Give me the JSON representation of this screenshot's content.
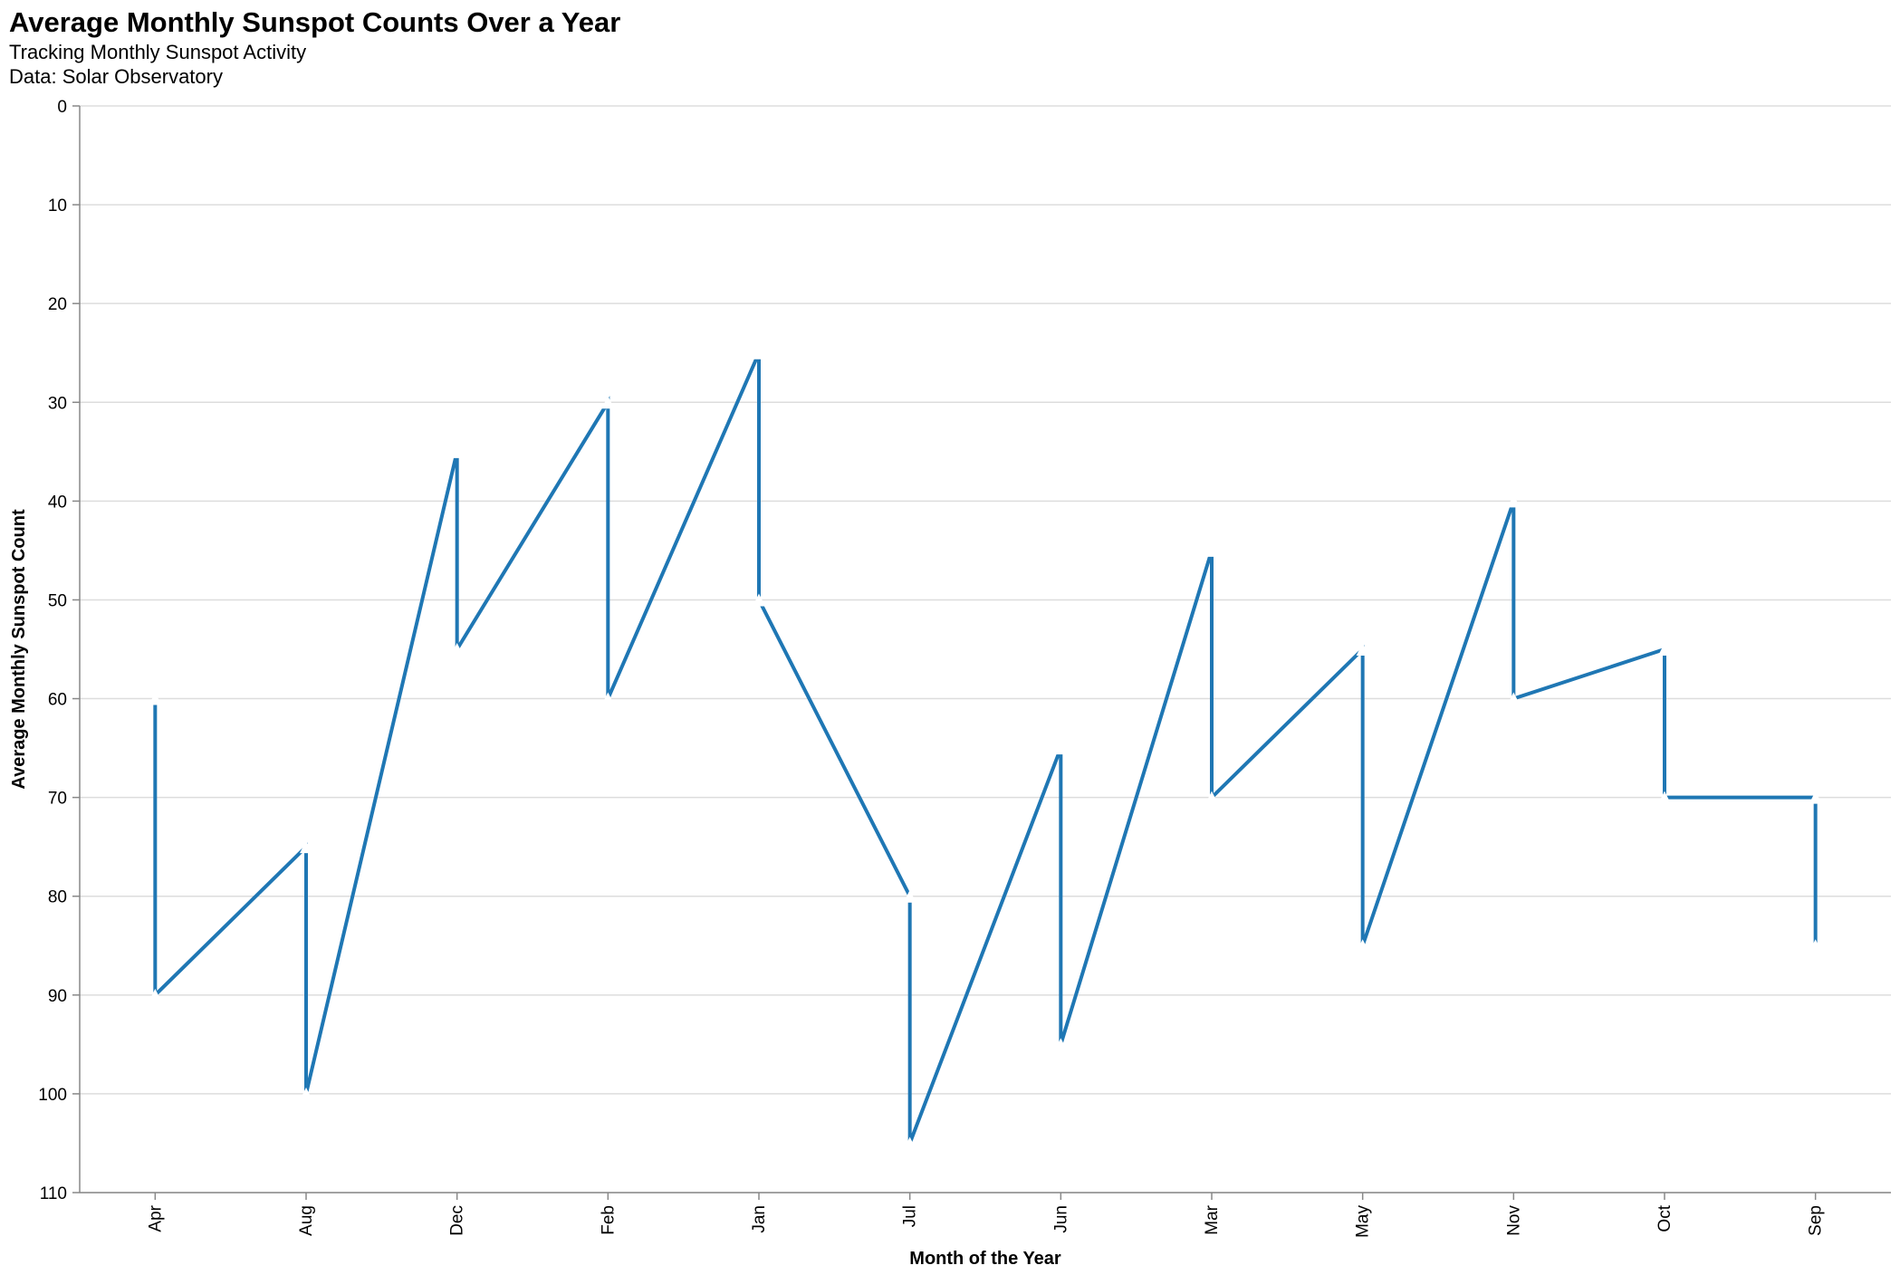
{
  "chart_data": {
    "type": "line",
    "title": "Average Monthly Sunspot Counts Over a Year",
    "subtitle": [
      "Tracking Monthly Sunspot Activity",
      "Data: Solar Observatory"
    ],
    "xlabel": "Month of the Year",
    "ylabel": "Average Monthly Sunspot Count",
    "categories": [
      "Apr",
      "Aug",
      "Dec",
      "Feb",
      "Jan",
      "Jul",
      "Jun",
      "Mar",
      "May",
      "Nov",
      "Oct",
      "Sep"
    ],
    "ylim": [
      0,
      110
    ],
    "y_reversed": true,
    "yticks": [
      0,
      10,
      20,
      30,
      40,
      50,
      60,
      70,
      80,
      90,
      100,
      110
    ],
    "grid": true,
    "series_color": "#1f77b4",
    "points": [
      {
        "month": "Apr",
        "value": 60
      },
      {
        "month": "Apr",
        "value": 90
      },
      {
        "month": "Aug",
        "value": 75
      },
      {
        "month": "Aug",
        "value": 100
      },
      {
        "month": "Dec",
        "value": 35
      },
      {
        "month": "Dec",
        "value": 55
      },
      {
        "month": "Feb",
        "value": 30
      },
      {
        "month": "Feb",
        "value": 60
      },
      {
        "month": "Jan",
        "value": 25
      },
      {
        "month": "Jan",
        "value": 50
      },
      {
        "month": "Jul",
        "value": 80
      },
      {
        "month": "Jul",
        "value": 105
      },
      {
        "month": "Jun",
        "value": 65
      },
      {
        "month": "Jun",
        "value": 95
      },
      {
        "month": "Mar",
        "value": 45
      },
      {
        "month": "Mar",
        "value": 70
      },
      {
        "month": "May",
        "value": 55
      },
      {
        "month": "May",
        "value": 85
      },
      {
        "month": "Nov",
        "value": 40
      },
      {
        "month": "Nov",
        "value": 60
      },
      {
        "month": "Oct",
        "value": 55
      },
      {
        "month": "Oct",
        "value": 70
      },
      {
        "month": "Sep",
        "value": 70
      },
      {
        "month": "Sep",
        "value": 85
      }
    ]
  }
}
